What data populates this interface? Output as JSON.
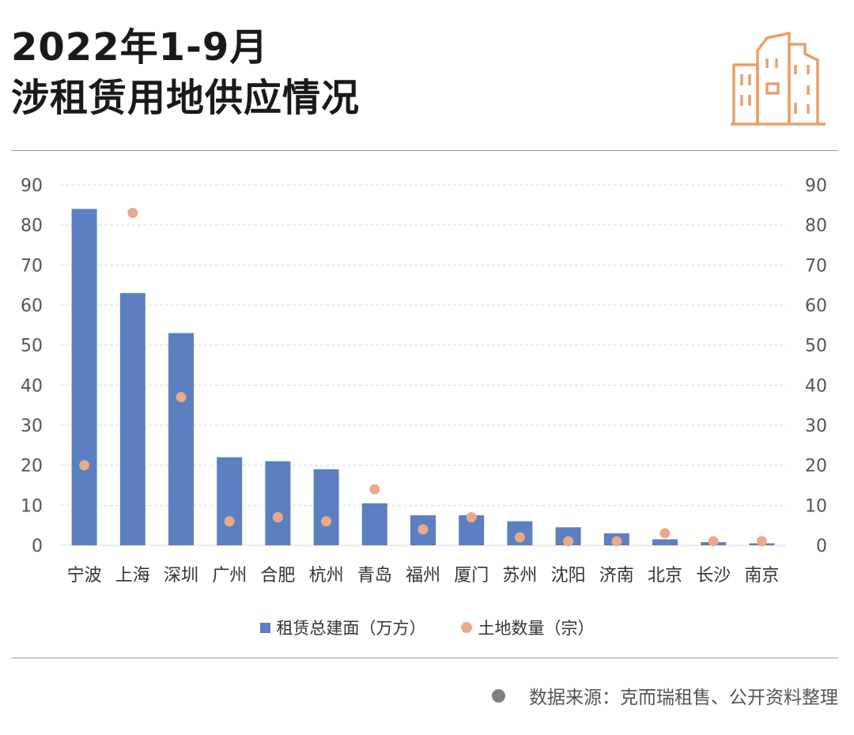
{
  "header": {
    "title_line1": "2022年1-9月",
    "title_line2": "涉租赁用地供应情况"
  },
  "icons": {
    "header_icon": "building-icon"
  },
  "colors": {
    "bar": "#5b7fc0",
    "dot": "#eaa98a",
    "icon": "#e8a06a",
    "grid": "#d9d9d9",
    "text": "#333333"
  },
  "chart_data": {
    "type": "bar",
    "categories": [
      "宁波",
      "上海",
      "深圳",
      "广州",
      "合肥",
      "杭州",
      "青岛",
      "福州",
      "厦门",
      "苏州",
      "沈阳",
      "济南",
      "北京",
      "长沙",
      "南京"
    ],
    "series": [
      {
        "name": "租赁总建面（万方）",
        "type": "bar",
        "axis": "left",
        "values": [
          84,
          63,
          53,
          22,
          21,
          19,
          10.5,
          7.5,
          7.5,
          6,
          4.5,
          3,
          1.5,
          0.8,
          0.5
        ]
      },
      {
        "name": "土地数量（宗）",
        "type": "scatter",
        "axis": "right",
        "values": [
          20,
          83,
          37,
          6,
          7,
          6,
          14,
          4,
          7,
          2,
          1,
          1,
          3,
          1,
          1
        ]
      }
    ],
    "ylim": [
      0,
      90
    ],
    "y2lim": [
      0,
      90
    ],
    "yticks": [
      0,
      10,
      20,
      30,
      40,
      50,
      60,
      70,
      80,
      90
    ],
    "grid": true,
    "legend": "bottom"
  },
  "legend": {
    "bar_label": "租赁总建面（万方）",
    "dot_label": "土地数量（宗）"
  },
  "footer": {
    "source_text": "数据来源：克而瑞租售、公开资料整理"
  }
}
